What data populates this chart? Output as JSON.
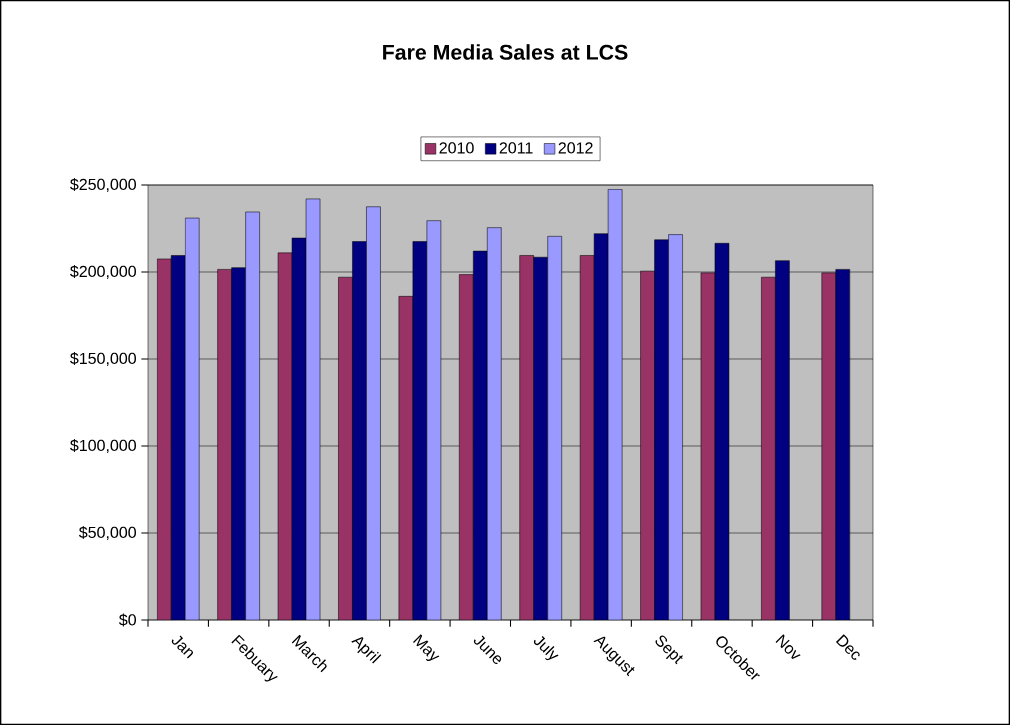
{
  "chart_data": {
    "type": "bar",
    "title": "Fare Media Sales at LCS",
    "categories": [
      "Jan",
      "Febuary",
      "March",
      "April",
      "May",
      "June",
      "July",
      "August",
      "Sept",
      "October",
      "Nov",
      "Dec"
    ],
    "series": [
      {
        "name": "2010",
        "color": "#993366",
        "values": [
          207500,
          201500,
          211000,
          197000,
          186000,
          198500,
          209500,
          209500,
          200500,
          199500,
          197000,
          199500
        ]
      },
      {
        "name": "2011",
        "color": "#000080",
        "values": [
          209500,
          202500,
          219500,
          217500,
          217500,
          212000,
          208500,
          222000,
          218500,
          216500,
          206500,
          201500
        ]
      },
      {
        "name": "2012",
        "color": "#9999ff",
        "values": [
          231000,
          234500,
          242000,
          237500,
          229500,
          225500,
          220500,
          247500,
          221500,
          null,
          null,
          null
        ]
      }
    ],
    "ylim": [
      0,
      250000
    ],
    "yticks": [
      {
        "value": 0,
        "label": "$0"
      },
      {
        "value": 50000,
        "label": "$50,000"
      },
      {
        "value": 100000,
        "label": "$100,000"
      },
      {
        "value": 150000,
        "label": "$150,000"
      },
      {
        "value": 200000,
        "label": "$200,000"
      },
      {
        "value": 250000,
        "label": "$250,000"
      }
    ],
    "grid": "y",
    "legend": "top"
  }
}
